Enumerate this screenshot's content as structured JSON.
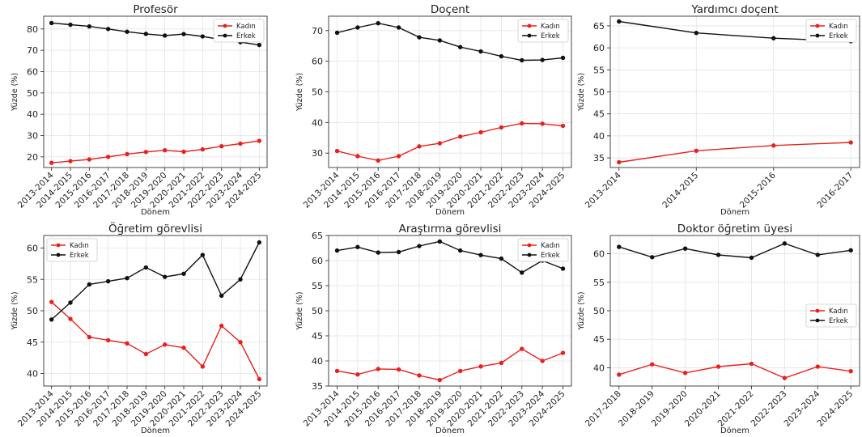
{
  "colors": {
    "female": "#e8211f",
    "male": "#111111",
    "grid": "#e3e3e3"
  },
  "chart_data": [
    {
      "type": "line",
      "title": "Profesör",
      "xlabel": "Dönem",
      "ylabel": "Yüzde (%)",
      "categories": [
        "2013-2014",
        "2014-2015",
        "2015-2016",
        "2016-2017",
        "2017-2018",
        "2018-2019",
        "2019-2020",
        "2020-2021",
        "2021-2022",
        "2022-2023",
        "2023-2024",
        "2024-2025"
      ],
      "ylim": [
        15,
        86
      ],
      "yticks": [
        20,
        30,
        40,
        50,
        60,
        70,
        80
      ],
      "legend": "top-right",
      "grid": true,
      "series": [
        {
          "name": "Kadın",
          "color": "#e8211f",
          "values": [
            17.2,
            18.0,
            18.8,
            20.0,
            21.3,
            22.3,
            23.1,
            22.4,
            23.5,
            25.0,
            26.2,
            27.5
          ]
        },
        {
          "name": "Erkek",
          "color": "#111111",
          "values": [
            82.8,
            82.0,
            81.2,
            80.0,
            78.7,
            77.7,
            76.9,
            77.6,
            76.5,
            75.0,
            73.8,
            72.5
          ]
        }
      ]
    },
    {
      "type": "line",
      "title": "Doçent",
      "xlabel": "Dönem",
      "ylabel": "Yüzde (%)",
      "categories": [
        "2013-2014",
        "2014-2015",
        "2015-2016",
        "2016-2017",
        "2017-2018",
        "2018-2019",
        "2019-2020",
        "2020-2021",
        "2021-2022",
        "2022-2023",
        "2023-2024",
        "2024-2025"
      ],
      "ylim": [
        25.3,
        74.7
      ],
      "yticks": [
        30,
        40,
        50,
        60,
        70
      ],
      "legend": "top-right",
      "grid": true,
      "series": [
        {
          "name": "Kadın",
          "color": "#e8211f",
          "values": [
            30.7,
            29.0,
            27.6,
            29.0,
            32.2,
            33.2,
            35.4,
            36.8,
            38.4,
            39.7,
            39.6,
            38.9
          ]
        },
        {
          "name": "Erkek",
          "color": "#111111",
          "values": [
            69.3,
            71.0,
            72.4,
            71.0,
            67.8,
            66.8,
            64.6,
            63.2,
            61.6,
            60.3,
            60.4,
            61.1
          ]
        }
      ]
    },
    {
      "type": "line",
      "title": "Yardımcı doçent",
      "xlabel": "Dönem",
      "ylabel": "Yüzde (%)",
      "categories": [
        "2013-2014",
        "2014-2015",
        "2015-2016",
        "2016-2017"
      ],
      "ylim": [
        32.8,
        67.2
      ],
      "yticks": [
        35,
        40,
        45,
        50,
        55,
        60,
        65
      ],
      "legend": "top-right",
      "grid": true,
      "series": [
        {
          "name": "Kadın",
          "color": "#e8211f",
          "values": [
            34.0,
            36.6,
            37.8,
            38.5
          ]
        },
        {
          "name": "Erkek",
          "color": "#111111",
          "values": [
            66.0,
            63.4,
            62.2,
            61.5
          ]
        }
      ]
    },
    {
      "type": "line",
      "title": "Öğretim görevlisi",
      "xlabel": "Dönem",
      "ylabel": "Yüzde (%)",
      "categories": [
        "2013-2014",
        "2014-2015",
        "2015-2016",
        "2016-2017",
        "2017-2018",
        "2018-2019",
        "2019-2020",
        "2020-2021",
        "2021-2022",
        "2022-2023",
        "2023-2024",
        "2024-2025"
      ],
      "ylim": [
        38,
        62
      ],
      "yticks": [
        40,
        45,
        50,
        55,
        60
      ],
      "legend": "top-left",
      "grid": true,
      "series": [
        {
          "name": "Kadın",
          "color": "#e8211f",
          "values": [
            51.4,
            48.7,
            45.8,
            45.3,
            44.8,
            43.1,
            44.6,
            44.1,
            41.1,
            47.6,
            45.0,
            39.1
          ]
        },
        {
          "name": "Erkek",
          "color": "#111111",
          "values": [
            48.6,
            51.3,
            54.2,
            54.7,
            55.2,
            56.9,
            55.4,
            55.9,
            58.9,
            52.4,
            55.0,
            60.9
          ]
        }
      ]
    },
    {
      "type": "line",
      "title": "Araştırma görevlisi",
      "xlabel": "Dönem",
      "ylabel": "Yüzde (%)",
      "categories": [
        "2013-2014",
        "2014-2015",
        "2015-2016",
        "2016-2017",
        "2017-2018",
        "2018-2019",
        "2019-2020",
        "2020-2021",
        "2021-2022",
        "2022-2023",
        "2023-2024",
        "2024-2025"
      ],
      "ylim": [
        35,
        65
      ],
      "yticks": [
        35,
        40,
        45,
        50,
        55,
        60,
        65
      ],
      "legend": "top-right",
      "grid": true,
      "series": [
        {
          "name": "Kadın",
          "color": "#e8211f",
          "values": [
            38.0,
            37.3,
            38.4,
            38.3,
            37.1,
            36.2,
            38.0,
            38.9,
            39.6,
            42.4,
            40.0,
            41.6
          ]
        },
        {
          "name": "Erkek",
          "color": "#111111",
          "values": [
            62.0,
            62.7,
            61.6,
            61.7,
            62.9,
            63.8,
            62.0,
            61.1,
            60.4,
            57.6,
            60.0,
            58.4
          ]
        }
      ]
    },
    {
      "type": "line",
      "title": "Doktor öğretim üyesi",
      "xlabel": "Dönem",
      "ylabel": "Yüzde (%)",
      "categories": [
        "2017-2018",
        "2018-2019",
        "2019-2020",
        "2020-2021",
        "2021-2022",
        "2022-2023",
        "2023-2024",
        "2024-2025"
      ],
      "ylim": [
        36.8,
        63.2
      ],
      "yticks": [
        40,
        45,
        50,
        55,
        60
      ],
      "legend": "center-right",
      "grid": true,
      "series": [
        {
          "name": "Kadın",
          "color": "#e8211f",
          "values": [
            38.8,
            40.6,
            39.1,
            40.2,
            40.7,
            38.2,
            40.2,
            39.4
          ]
        },
        {
          "name": "Erkek",
          "color": "#111111",
          "values": [
            61.2,
            59.4,
            60.9,
            59.8,
            59.3,
            61.8,
            59.8,
            60.6
          ]
        }
      ]
    }
  ]
}
